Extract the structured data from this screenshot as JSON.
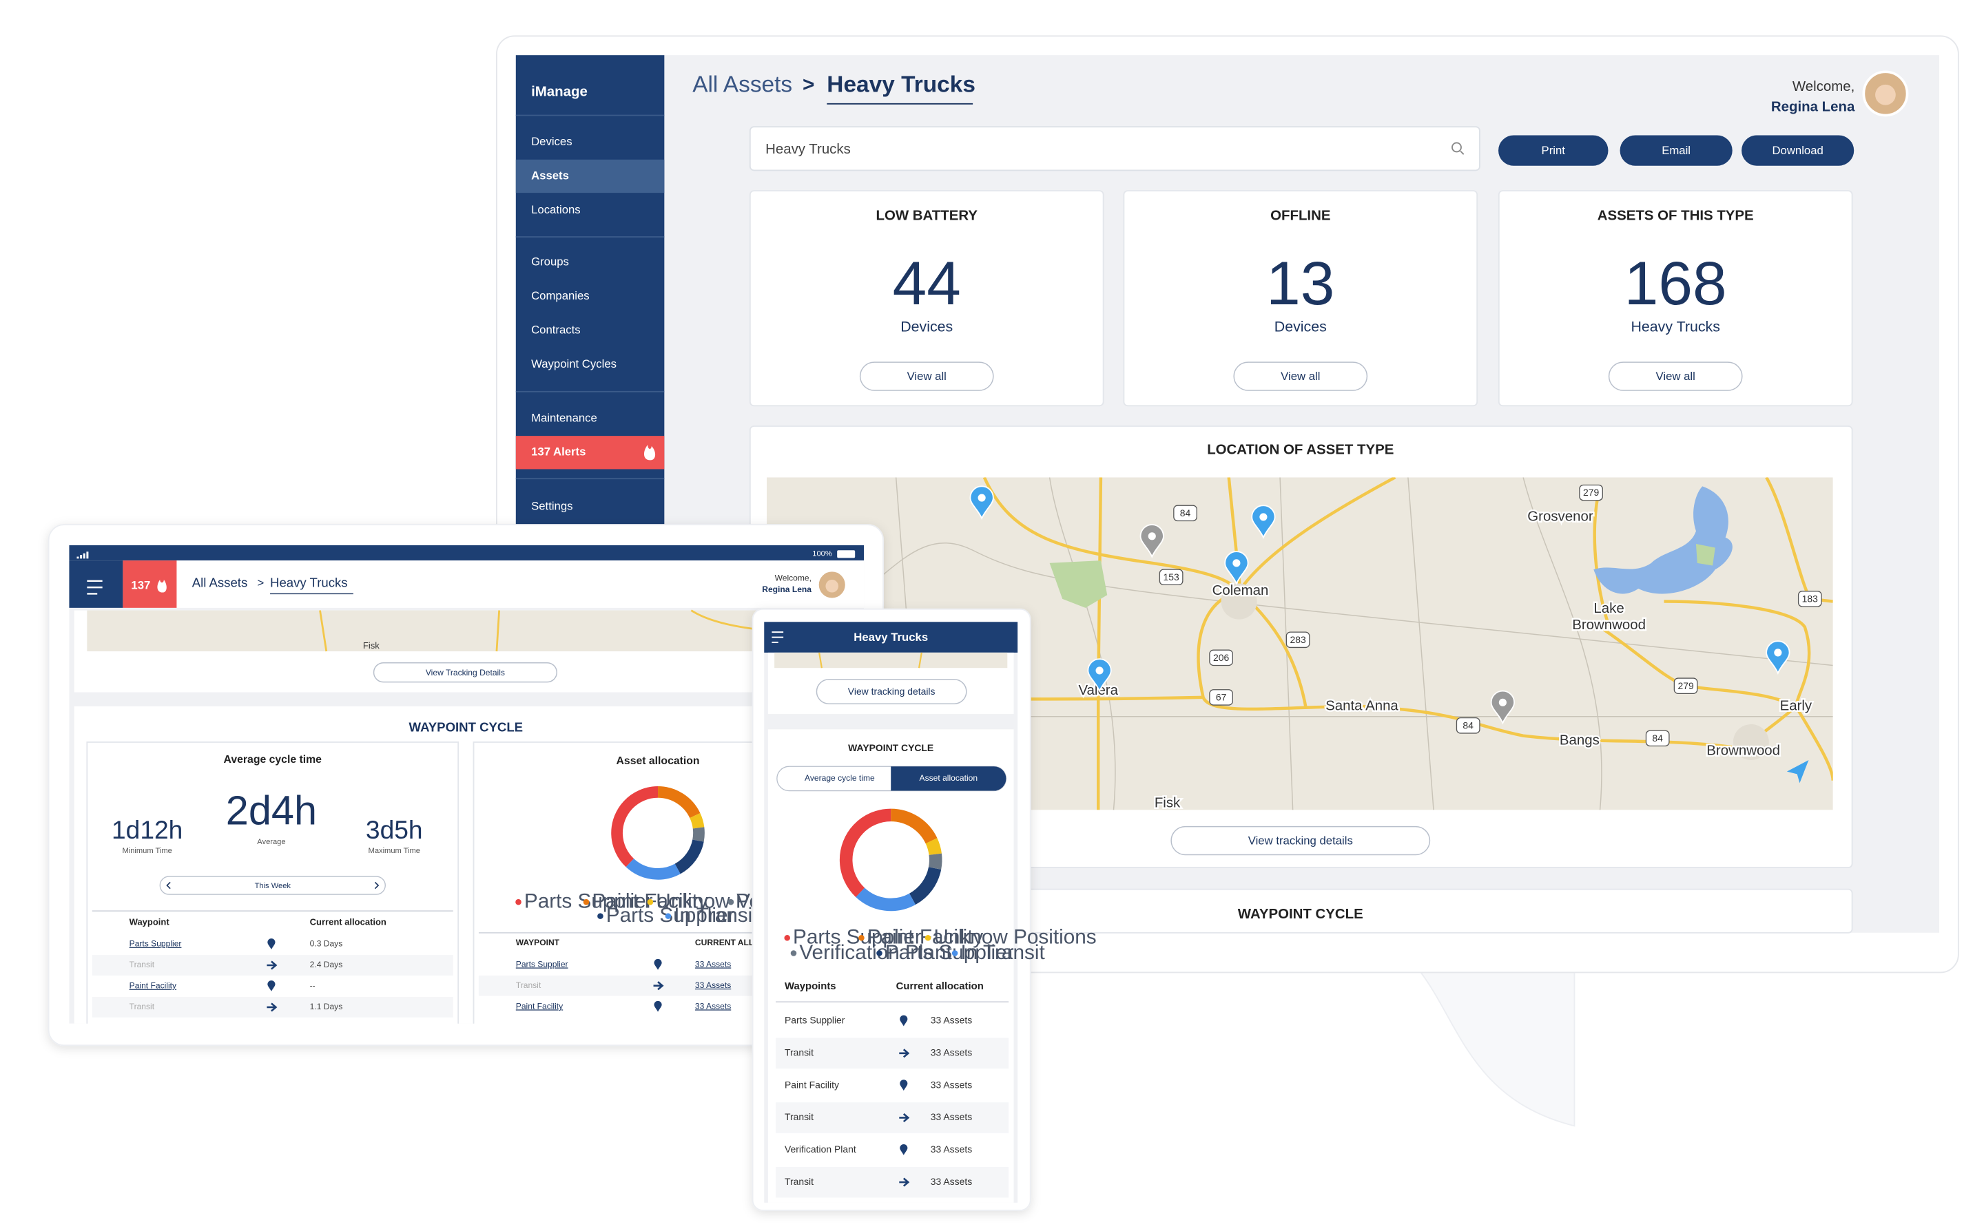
{
  "desktop": {
    "brand": "iManage",
    "nav": [
      [
        "Devices",
        "Assets",
        "Locations"
      ],
      [
        "Groups",
        "Companies",
        "Contracts",
        "Waypoint Cycles"
      ],
      [
        "Maintenance",
        "137 Alerts"
      ],
      [
        "Settings"
      ]
    ],
    "breadcrumb": {
      "parent": "All Assets",
      "separator": ">",
      "current": "Heavy Trucks"
    },
    "welcome": "Welcome,",
    "user": "Regina Lena",
    "search": "Heavy Trucks",
    "buttons": [
      "Print",
      "Email",
      "Download"
    ],
    "cards": [
      {
        "title": "LOW BATTERY",
        "value": 44,
        "unit": "Devices",
        "action": "View all"
      },
      {
        "title": "OFFLINE",
        "value": 13,
        "unit": "Devices",
        "action": "View all"
      },
      {
        "title": "ASSETS OF THIS TYPE",
        "value": 168,
        "unit": "Heavy Trucks",
        "action": "View all"
      }
    ],
    "map": {
      "title": "LOCATION OF ASSET TYPE",
      "places": [
        [
          "Grosvenor"
        ],
        [
          "Coleman"
        ],
        [
          "Lake",
          "Brownwood"
        ],
        [
          "Santa Anna"
        ],
        [
          "Bangs"
        ],
        [
          "Brownwood"
        ],
        [
          "Early"
        ],
        [
          "Valera"
        ],
        [
          "Fisk"
        ]
      ],
      "highways": [
        "84",
        "153",
        "206",
        "67",
        "283",
        "279",
        "183",
        "84",
        "84",
        "279"
      ],
      "action": "View tracking details"
    },
    "section_title": "WAYPOINT CYCLE"
  },
  "tablet": {
    "signal": "100%",
    "alerts": "137",
    "breadcrumb": {
      "parent": "All Assets",
      "separator": ">",
      "current": "Heavy Trucks"
    },
    "welcome": "Welcome,",
    "user": "Regina Lena",
    "map_place": "Fisk",
    "action": "View Tracking Details",
    "section_title": "WAYPOINT CYCLE",
    "cycle": {
      "title": "Average cycle time",
      "stats": [
        {
          "value": "1d12h",
          "label": "Minimum Time"
        },
        {
          "value": "2d4h",
          "label": "Average"
        },
        {
          "value": "3d5h",
          "label": "Maximum Time"
        }
      ],
      "period": "This Week",
      "columns": [
        "Waypoint",
        "Current allocation"
      ],
      "rows": [
        [
          "Parts Supplier",
          "0.3 Days"
        ],
        [
          "Transit",
          "2.4 Days"
        ],
        [
          "Paint Facility",
          "--"
        ],
        [
          "Transit",
          "1.1 Days"
        ]
      ]
    },
    "allocation": {
      "title": "Asset allocation",
      "columns": [
        "WAYPOINT",
        "CURRENT ALL"
      ],
      "rows": [
        [
          "Parts Supplier",
          "33 Assets"
        ],
        [
          "Transit",
          "33 Assets"
        ],
        [
          "Paint Facility",
          "33 Assets"
        ]
      ]
    }
  },
  "phone": {
    "title": "Heavy Trucks",
    "action": "View tracking details",
    "section_title": "WAYPOINT CYCLE",
    "tabs": [
      "Average cycle time",
      "Asset allocation"
    ],
    "columns": [
      "Waypoints",
      "Current allocation"
    ],
    "rows": [
      [
        "Parts Supplier",
        "33 Assets"
      ],
      [
        "Transit",
        "33 Assets"
      ],
      [
        "Paint Facility",
        "33 Assets"
      ],
      [
        "Transit",
        "33 Assets"
      ],
      [
        "Verification Plant",
        "33 Assets"
      ],
      [
        "Transit",
        "33 Assets"
      ]
    ]
  },
  "chart_data": {
    "type": "pie",
    "categories": [
      "Parts Supplier",
      "Paint Facility",
      "Unknow Positions",
      "Verification Plant",
      "Parts Supplier",
      "In Transit"
    ],
    "values": [
      38,
      18,
      5,
      5,
      14,
      20
    ],
    "colors": [
      "#e94040",
      "#e8770e",
      "#f2c21b",
      "#6b7886",
      "#1d3f73",
      "#4a90e8"
    ]
  }
}
